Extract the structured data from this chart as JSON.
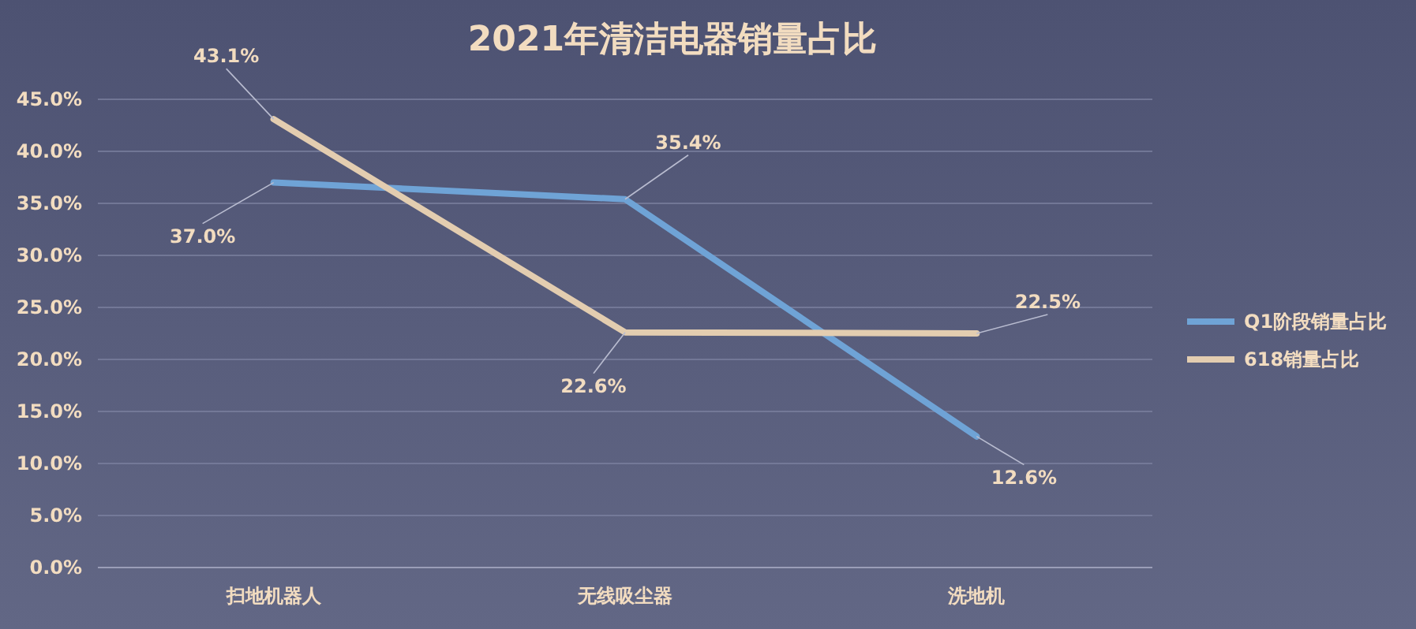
{
  "chart_data": {
    "type": "line",
    "title": "2021年清洁电器销量占比",
    "categories": [
      "扫地机器人",
      "无线吸尘器",
      "洗地机"
    ],
    "series": [
      {
        "name": "Q1阶段销量占比",
        "color": "#6fa3d6",
        "values": [
          37.0,
          35.4,
          12.6
        ],
        "value_labels": [
          "37.0%",
          "35.4%",
          "12.6%"
        ]
      },
      {
        "name": "618销量占比",
        "color": "#e3cdb0",
        "values": [
          43.1,
          22.6,
          22.5
        ],
        "value_labels": [
          "43.1%",
          "22.6%",
          "22.5%"
        ]
      }
    ],
    "ylim": [
      0,
      45
    ],
    "yticks": [
      {
        "value": 0,
        "label": "0.0%"
      },
      {
        "value": 5,
        "label": "5.0%"
      },
      {
        "value": 10,
        "label": "10.0%"
      },
      {
        "value": 15,
        "label": "15.0%"
      },
      {
        "value": 20,
        "label": "20.0%"
      },
      {
        "value": 25,
        "label": "25.0%"
      },
      {
        "value": 30,
        "label": "30.0%"
      },
      {
        "value": 35,
        "label": "35.0%"
      },
      {
        "value": 40,
        "label": "40.0%"
      },
      {
        "value": 45,
        "label": "45.0%"
      }
    ],
    "grid": "y",
    "legend": "right",
    "marker": "none",
    "line_style": "solid"
  }
}
